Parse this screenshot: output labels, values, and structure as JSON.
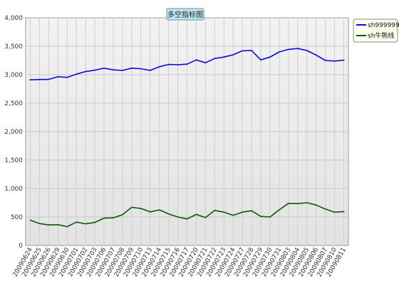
{
  "chart_data": {
    "type": "line",
    "title": "多空指标图",
    "categories": [
      "20090624",
      "20090625",
      "20090626",
      "20090629",
      "20090630",
      "20090701",
      "20090702",
      "20090703",
      "20090706",
      "20090707",
      "20090708",
      "20090709",
      "20090710",
      "20090713",
      "20090714",
      "20090715",
      "20090716",
      "20090717",
      "20090720",
      "20090721",
      "20090722",
      "20090723",
      "20090724",
      "20090727",
      "20090728",
      "20090729",
      "20090730",
      "20090731",
      "20090803",
      "20090804",
      "20090805",
      "20090806",
      "20090807",
      "20090810",
      "20090811"
    ],
    "series": [
      {
        "name": "sh999999",
        "color": "#0a0adc",
        "values": [
          2910,
          2915,
          2918,
          2965,
          2952,
          3010,
          3055,
          3080,
          3115,
          3085,
          3075,
          3115,
          3105,
          3075,
          3140,
          3180,
          3175,
          3185,
          3260,
          3210,
          3285,
          3310,
          3350,
          3420,
          3425,
          3260,
          3310,
          3400,
          3445,
          3460,
          3425,
          3345,
          3250,
          3240,
          3255
        ]
      },
      {
        "name": "sh牛熊线",
        "color": "#0a5a0a",
        "values": [
          445,
          385,
          360,
          365,
          330,
          410,
          380,
          405,
          480,
          485,
          540,
          670,
          650,
          590,
          625,
          555,
          500,
          465,
          545,
          490,
          615,
          585,
          530,
          585,
          610,
          510,
          500,
          625,
          740,
          735,
          750,
          710,
          640,
          585,
          595
        ]
      }
    ],
    "xlabel": "",
    "ylabel": "",
    "ylim": [
      0,
      4000
    ],
    "yticks": [
      "0",
      "500",
      "1,000",
      "1,500",
      "2,000",
      "2,500",
      "3,000",
      "3,500",
      "4,000"
    ],
    "grid": true,
    "legend_position": "top-right"
  }
}
